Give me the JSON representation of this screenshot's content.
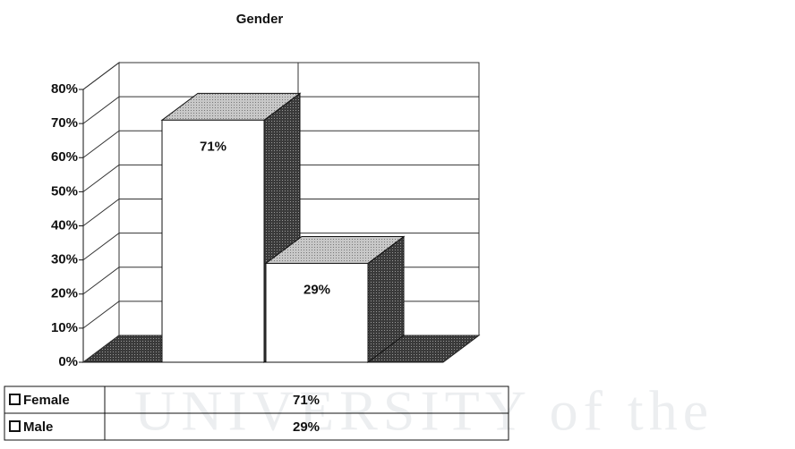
{
  "chart_data": {
    "type": "bar3d",
    "title": "Gender",
    "categories": [
      "Female",
      "Male"
    ],
    "values": [
      71,
      29
    ],
    "value_labels": [
      "71%",
      "29%"
    ],
    "ylim": [
      0,
      80
    ],
    "yticks": [
      {
        "value": 0,
        "label": "0%"
      },
      {
        "value": 10,
        "label": "10%"
      },
      {
        "value": 20,
        "label": "20%"
      },
      {
        "value": 30,
        "label": "30%"
      },
      {
        "value": 40,
        "label": "40%"
      },
      {
        "value": 50,
        "label": "50%"
      },
      {
        "value": 60,
        "label": "60%"
      },
      {
        "value": 70,
        "label": "70%"
      },
      {
        "value": 80,
        "label": "80%"
      }
    ],
    "grid": true,
    "color": "#ffffff",
    "watermark": "UNIVERSITY of the"
  }
}
